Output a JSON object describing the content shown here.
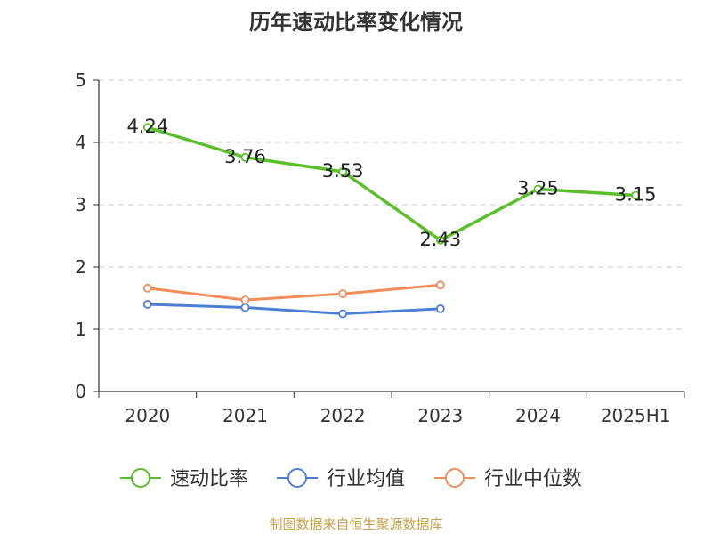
{
  "chart_data": {
    "type": "line",
    "title": "历年速动比率变化情况",
    "categories": [
      "2020",
      "2021",
      "2022",
      "2023",
      "2024",
      "2025H1"
    ],
    "ylim": [
      0,
      5
    ],
    "yticks": [
      0,
      1,
      2,
      3,
      4,
      5
    ],
    "grid": true,
    "legend_position": "bottom",
    "series": [
      {
        "name": "速动比率",
        "color": "#5bbf2a",
        "values": [
          4.24,
          3.76,
          3.53,
          2.43,
          3.25,
          3.15
        ],
        "labels": true
      },
      {
        "name": "行业均值",
        "color": "#4d7fd6",
        "values": [
          1.4,
          1.35,
          1.25,
          1.33,
          null,
          null
        ],
        "labels": false
      },
      {
        "name": "行业中位数",
        "color": "#f28e5a",
        "values": [
          1.66,
          1.47,
          1.57,
          1.71,
          null,
          null
        ],
        "labels": false
      }
    ]
  },
  "footer": "制图数据来自恒生聚源数据库"
}
